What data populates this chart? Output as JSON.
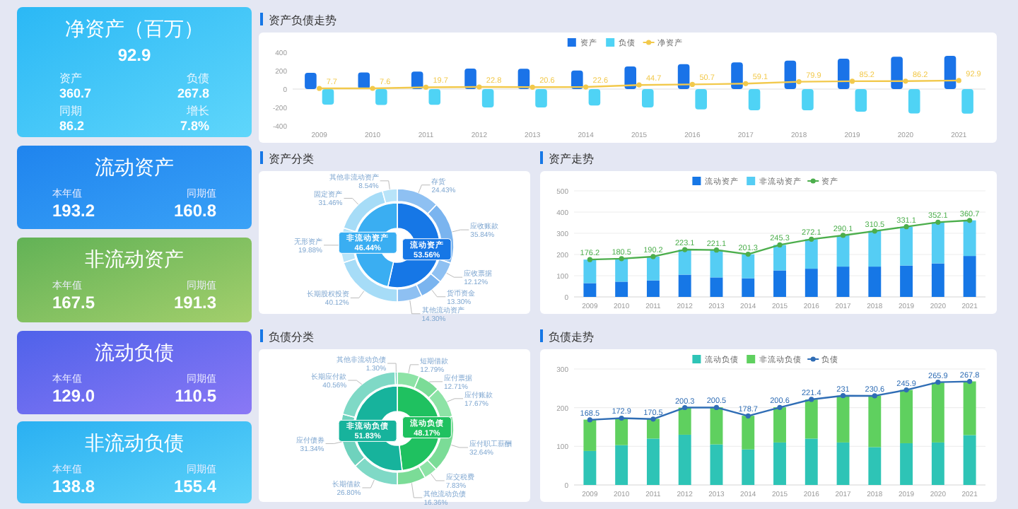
{
  "chart_data": [
    {
      "type": "other",
      "title": "净资产（百万）",
      "annotations": [
        "92.9",
        "资产",
        "360.7",
        "负债",
        "267.8",
        "同期",
        "86.2",
        "增长",
        "7.8%"
      ]
    },
    {
      "type": "other",
      "title": "流动资产",
      "annotations": [
        "本年值",
        "193.2",
        "同期值",
        "160.8"
      ]
    },
    {
      "type": "other",
      "title": "非流动资产",
      "annotations": [
        "本年值",
        "167.5",
        "同期值",
        "191.3"
      ]
    },
    {
      "type": "other",
      "title": "流动负债",
      "annotations": [
        "本年值",
        "129.0",
        "同期值",
        "110.5"
      ]
    },
    {
      "type": "other",
      "title": "非流动负债",
      "annotations": [
        "本年值",
        "138.8",
        "同期值",
        "155.4"
      ]
    },
    {
      "type": "bar",
      "title": "资产负债走势",
      "categories": [
        "2009",
        "2010",
        "2011",
        "2012",
        "2013",
        "2014",
        "2015",
        "2016",
        "2017",
        "2018",
        "2019",
        "2020",
        "2021"
      ],
      "ylim": [
        -400,
        400
      ],
      "yticks": [
        -400,
        -200,
        0,
        200,
        400
      ],
      "legend": "top",
      "marker": "circle",
      "series": [
        {
          "name": "资产",
          "color": "#1a73e8",
          "values": [
            176.2,
            180.5,
            190.2,
            223.1,
            221.1,
            201.3,
            245.3,
            272.1,
            290.1,
            310.5,
            331.1,
            352.1,
            360.7
          ]
        },
        {
          "name": "负债",
          "color": "#4fd3f5",
          "values": [
            -168.5,
            -172.9,
            -170.5,
            -200.3,
            -200.5,
            -178.7,
            -200.6,
            -221.4,
            -231,
            -230.6,
            -245.9,
            -265.9,
            -267.8
          ]
        },
        {
          "name": "净资产",
          "type": "line",
          "color": "#f2c94c",
          "values": [
            7.7,
            7.6,
            19.7,
            22.8,
            20.6,
            22.6,
            44.7,
            50.7,
            59.1,
            79.9,
            85.2,
            86.2,
            92.9
          ],
          "value_labels": [
            "7.7",
            "7.6",
            "19.7",
            "22.8",
            "20.6",
            "22.6",
            "44.7",
            "50.7",
            "59.1",
            "79.9",
            "85.2",
            "86.2",
            "92.9"
          ]
        }
      ]
    },
    {
      "type": "donut",
      "title": "资产分类",
      "categories": [
        "流动资产",
        "非流动资产"
      ],
      "values": [
        53.56,
        46.44
      ],
      "colors": [
        "#1677e6",
        "#3aaef2"
      ],
      "value_labels": [
        "53.56%",
        "46.44%"
      ]
    },
    {
      "type": "donut",
      "categories": [
        "存货",
        "应收账款",
        "应收票据",
        "货币资金",
        "其他流动资产",
        "长期股权投资",
        "无形资产",
        "固定资产",
        "其他非流动资产"
      ],
      "values": [
        24.43,
        35.84,
        12.12,
        13.3,
        14.3,
        40.12,
        19.88,
        31.46,
        8.54
      ],
      "colors": [
        "#8ec0f2",
        "#7ab4ef",
        "#8ec0f2",
        "#7ab4ef",
        "#8ec0f2",
        "#a6dcf7",
        "#b8e4f9",
        "#a6dcf7",
        "#b8e4f9"
      ],
      "value_labels": [
        "24.43%",
        "35.84%",
        "12.12%",
        "13.30%",
        "14.30%",
        "40.12%",
        "19.88%",
        "31.46%",
        "8.54%"
      ]
    },
    {
      "type": "bar",
      "title": "资产走势",
      "stacked": true,
      "categories": [
        "2009",
        "2010",
        "2011",
        "2012",
        "2013",
        "2014",
        "2015",
        "2016",
        "2017",
        "2018",
        "2019",
        "2020",
        "2021"
      ],
      "ylim": [
        0,
        500
      ],
      "yticks": [
        0,
        100,
        200,
        300,
        400,
        500
      ],
      "grid": "y",
      "legend": "top",
      "marker": "circle",
      "series": [
        {
          "name": "流动资产",
          "color": "#1677e6",
          "values": [
            65,
            72,
            78,
            105,
            92,
            88,
            125,
            133,
            143,
            143,
            148,
            158,
            193
          ]
        },
        {
          "name": "非流动资产",
          "color": "#55cdf4",
          "values": [
            111,
            109,
            112,
            118,
            129,
            113,
            120,
            139,
            147,
            168,
            183,
            194,
            168
          ]
        },
        {
          "name": "资产",
          "type": "line",
          "color": "#4cae4c",
          "values": [
            176.2,
            180.5,
            190.2,
            223.1,
            221.1,
            201.3,
            245.3,
            272.1,
            290.1,
            310.5,
            331.1,
            352.1,
            360.7
          ],
          "value_labels": [
            "176.2",
            "180.5",
            "190.2",
            "223.1",
            "221.1",
            "201.3",
            "245.3",
            "272.1",
            "290.1",
            "310.5",
            "331.1",
            "352.1",
            "360.7"
          ]
        }
      ]
    },
    {
      "type": "donut",
      "title": "负债分类",
      "categories": [
        "流动负债",
        "非流动负债"
      ],
      "values": [
        48.17,
        51.83
      ],
      "colors": [
        "#1fc160",
        "#17b39c"
      ],
      "value_labels": [
        "48.17%",
        "51.83%"
      ]
    },
    {
      "type": "donut",
      "categories": [
        "短期借款",
        "应付票据",
        "应付账款",
        "应付职工薪酬",
        "应交税费",
        "其他流动负债",
        "长期借款",
        "应付债券",
        "长期应付款",
        "其他非流动负债"
      ],
      "values": [
        12.79,
        12.71,
        17.67,
        32.64,
        7.83,
        16.36,
        26.8,
        31.34,
        40.56,
        1.3
      ],
      "colors": [
        "#8de3a6",
        "#7bdc97",
        "#8de3a6",
        "#7bdc97",
        "#8de3a6",
        "#7bdc97",
        "#7fd9c6",
        "#6fd2bd",
        "#7fd9c6",
        "#6fd2bd"
      ],
      "value_labels": [
        "12.79%",
        "12.71%",
        "17.67%",
        "32.64%",
        "7.83%",
        "16.36%",
        "26.80%",
        "31.34%",
        "40.56%",
        "1.30%"
      ]
    },
    {
      "type": "bar",
      "title": "负债走势",
      "stacked": true,
      "categories": [
        "2009",
        "2010",
        "2011",
        "2012",
        "2013",
        "2014",
        "2015",
        "2016",
        "2017",
        "2018",
        "2019",
        "2020",
        "2021"
      ],
      "ylim": [
        0,
        300
      ],
      "yticks": [
        0,
        100,
        200,
        300
      ],
      "grid": "y",
      "legend": "top",
      "marker": "circle",
      "series": [
        {
          "name": "流动负债",
          "color": "#2ec4b6",
          "values": [
            88,
            103,
            120,
            130,
            105,
            92,
            110,
            120,
            110,
            98,
            108,
            110,
            129
          ]
        },
        {
          "name": "非流动负债",
          "color": "#5fd05f",
          "values": [
            81,
            70,
            51,
            70,
            96,
            87,
            91,
            101,
            121,
            133,
            138,
            155,
            139
          ]
        },
        {
          "name": "负债",
          "type": "line",
          "color": "#2f6db5",
          "values": [
            168.5,
            172.9,
            170.5,
            200.3,
            200.5,
            178.7,
            200.6,
            221.4,
            231,
            230.6,
            245.9,
            265.9,
            267.8
          ],
          "value_labels": [
            "168.5",
            "172.9",
            "170.5",
            "200.3",
            "200.5",
            "178.7",
            "200.6",
            "221.4",
            "231",
            "230.6",
            "245.9",
            "265.9",
            "267.8"
          ]
        }
      ]
    }
  ]
}
